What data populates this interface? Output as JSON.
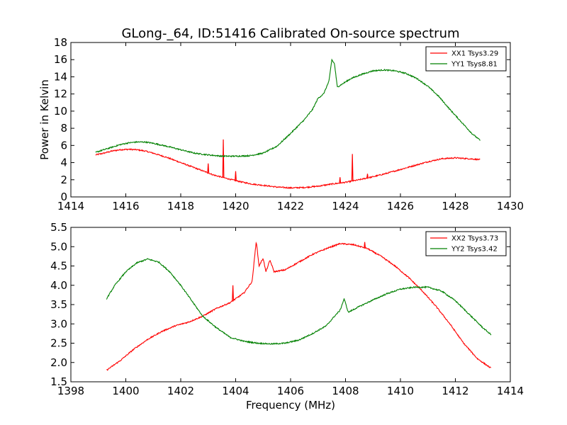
{
  "figure": {
    "title": "GLong-_64, ID:51416 Calibrated On-source spectrum",
    "xlabel": "Frequency (MHz)"
  },
  "chart_data": [
    {
      "type": "line",
      "title": "GLong-_64, ID:51416 Calibrated On-source spectrum",
      "xlabel": "",
      "ylabel": "Power in Kelvin",
      "xlim": [
        1414,
        1430
      ],
      "ylim": [
        0,
        18
      ],
      "xticks": [
        "1414",
        "1416",
        "1418",
        "1420",
        "1422",
        "1424",
        "1426",
        "1428",
        "1430"
      ],
      "yticks": [
        "0",
        "2",
        "4",
        "6",
        "8",
        "10",
        "12",
        "14",
        "16",
        "18"
      ],
      "grid": false,
      "legend_position": "top-right",
      "series": [
        {
          "name": "XX1 Tsys3.29",
          "color": "#ff0000",
          "x": [
            1414.9,
            1415.2,
            1415.5,
            1415.8,
            1416.1,
            1416.4,
            1416.7,
            1417.0,
            1417.5,
            1418.0,
            1418.5,
            1419.0,
            1419.2,
            1419.5,
            1419.8,
            1420.2,
            1420.6,
            1421.0,
            1421.5,
            1422.0,
            1422.5,
            1423.0,
            1423.5,
            1424.0,
            1424.5,
            1425.0,
            1425.5,
            1426.0,
            1426.5,
            1427.0,
            1427.5,
            1428.0,
            1428.5,
            1428.9
          ],
          "values": [
            4.9,
            5.1,
            5.35,
            5.5,
            5.55,
            5.5,
            5.35,
            5.1,
            4.6,
            4.0,
            3.4,
            2.8,
            2.55,
            2.3,
            2.05,
            1.75,
            1.5,
            1.35,
            1.15,
            1.05,
            1.1,
            1.25,
            1.5,
            1.7,
            2.0,
            2.35,
            2.75,
            3.2,
            3.65,
            4.1,
            4.45,
            4.55,
            4.45,
            4.35
          ],
          "spikes": [
            {
              "x": 1419.0,
              "peak": 3.9
            },
            {
              "x": 1419.55,
              "peak": 6.7
            },
            {
              "x": 1420.0,
              "peak": 3.0
            },
            {
              "x": 1423.8,
              "peak": 2.3
            },
            {
              "x": 1424.25,
              "peak": 5.0
            },
            {
              "x": 1424.8,
              "peak": 2.7
            }
          ]
        },
        {
          "name": "YY1 Tsys8.81",
          "color": "#008000",
          "x": [
            1414.9,
            1415.2,
            1415.5,
            1415.8,
            1416.1,
            1416.4,
            1416.7,
            1417.0,
            1417.5,
            1418.0,
            1418.5,
            1419.0,
            1419.5,
            1420.0,
            1420.5,
            1421.0,
            1421.5,
            1422.0,
            1422.5,
            1422.8,
            1423.0,
            1423.2,
            1423.4,
            1423.5,
            1423.6,
            1423.7,
            1423.9,
            1424.2,
            1424.6,
            1425.0,
            1425.4,
            1425.8,
            1426.2,
            1426.6,
            1427.0,
            1427.4,
            1427.8,
            1428.2,
            1428.6,
            1428.9
          ],
          "values": [
            5.2,
            5.5,
            5.8,
            6.1,
            6.3,
            6.4,
            6.4,
            6.25,
            5.9,
            5.5,
            5.1,
            4.9,
            4.75,
            4.75,
            4.8,
            5.1,
            5.9,
            7.4,
            9.0,
            10.2,
            11.5,
            12.0,
            13.5,
            16.0,
            15.5,
            12.8,
            13.2,
            13.8,
            14.3,
            14.7,
            14.8,
            14.7,
            14.4,
            13.8,
            12.9,
            11.7,
            10.2,
            8.8,
            7.4,
            6.6
          ],
          "spikes": []
        }
      ]
    },
    {
      "type": "line",
      "title": "",
      "xlabel": "Frequency (MHz)",
      "ylabel": "",
      "xlim": [
        1398,
        1414
      ],
      "ylim": [
        1.5,
        5.5
      ],
      "xticks": [
        "1398",
        "1400",
        "1402",
        "1404",
        "1406",
        "1408",
        "1410",
        "1412",
        "1414"
      ],
      "yticks": [
        "1.5",
        "2.0",
        "2.5",
        "3.0",
        "3.5",
        "4.0",
        "4.5",
        "5.0",
        "5.5"
      ],
      "grid": false,
      "legend_position": "top-right",
      "series": [
        {
          "name": "XX2 Tsys3.73",
          "color": "#ff0000",
          "x": [
            1399.3,
            1399.8,
            1400.3,
            1400.8,
            1401.3,
            1401.8,
            1402.3,
            1402.8,
            1403.3,
            1403.8,
            1404.3,
            1404.6,
            1404.75,
            1404.85,
            1405.0,
            1405.1,
            1405.25,
            1405.4,
            1405.8,
            1406.3,
            1406.8,
            1407.3,
            1407.8,
            1408.3,
            1408.8,
            1409.3,
            1409.8,
            1410.3,
            1410.8,
            1411.3,
            1411.8,
            1412.3,
            1412.8,
            1413.3
          ],
          "values": [
            1.8,
            2.05,
            2.35,
            2.6,
            2.8,
            2.95,
            3.05,
            3.2,
            3.4,
            3.55,
            3.8,
            4.1,
            5.15,
            4.5,
            4.7,
            4.35,
            4.65,
            4.35,
            4.4,
            4.6,
            4.8,
            4.95,
            5.08,
            5.05,
            4.95,
            4.75,
            4.5,
            4.2,
            3.85,
            3.45,
            3.0,
            2.5,
            2.1,
            1.85
          ],
          "spikes": [
            {
              "x": 1403.9,
              "peak": 4.0
            },
            {
              "x": 1408.7,
              "peak": 5.12
            }
          ]
        },
        {
          "name": "YY2 Tsys3.42",
          "color": "#008000",
          "x": [
            1399.3,
            1399.6,
            1400.0,
            1400.4,
            1400.8,
            1401.2,
            1401.6,
            1402.0,
            1402.4,
            1402.8,
            1403.3,
            1403.8,
            1404.3,
            1404.8,
            1405.3,
            1405.8,
            1406.3,
            1406.8,
            1407.3,
            1407.6,
            1407.8,
            1407.95,
            1408.1,
            1408.5,
            1409.0,
            1409.5,
            1410.0,
            1410.5,
            1411.0,
            1411.5,
            1412.0,
            1412.5,
            1413.0,
            1413.3
          ],
          "values": [
            3.65,
            4.0,
            4.35,
            4.58,
            4.68,
            4.6,
            4.35,
            4.0,
            3.6,
            3.2,
            2.9,
            2.65,
            2.55,
            2.5,
            2.48,
            2.5,
            2.58,
            2.75,
            2.95,
            3.2,
            3.35,
            3.65,
            3.3,
            3.45,
            3.62,
            3.78,
            3.9,
            3.95,
            3.95,
            3.85,
            3.6,
            3.25,
            2.9,
            2.72
          ],
          "spikes": []
        }
      ]
    }
  ]
}
